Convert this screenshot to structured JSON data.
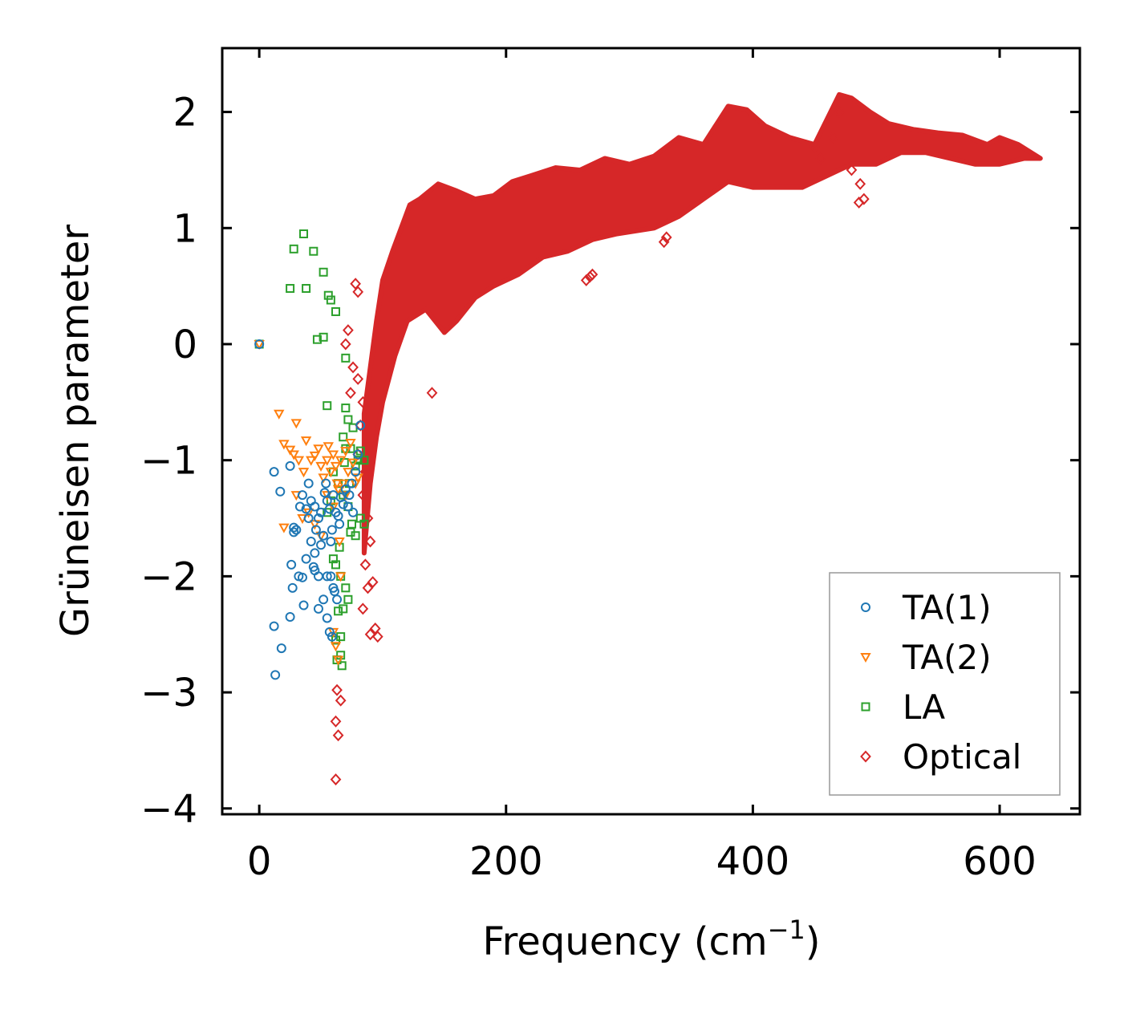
{
  "chart_data": {
    "type": "scatter",
    "title": "",
    "xlabel": "Frequency (cm",
    "xlabel_sup": "−1",
    "xlabel_close": ")",
    "ylabel": "Grüneisen parameter",
    "xlim": [
      -30,
      665
    ],
    "ylim": [
      -4.05,
      2.55
    ],
    "xticks": [
      0,
      200,
      400,
      600
    ],
    "xtick_labels": [
      "0",
      "200",
      "400",
      "600"
    ],
    "yticks": [
      2,
      1,
      0,
      -1,
      -2,
      -3,
      -4
    ],
    "ytick_labels": [
      "2",
      "1",
      "0",
      "−1",
      "−2",
      "−3",
      "−4"
    ],
    "legend_position": "lower-right",
    "series": [
      {
        "name": "TA(1)",
        "marker": "circle",
        "color": "#1f77b4",
        "points": [
          [
            0,
            0
          ],
          [
            13,
            -2.85
          ],
          [
            12,
            -2.43
          ],
          [
            18,
            -2.62
          ],
          [
            25,
            -2.35
          ],
          [
            27,
            -2.1
          ],
          [
            26,
            -1.9
          ],
          [
            32,
            -2.0
          ],
          [
            35,
            -2.01
          ],
          [
            38,
            -1.85
          ],
          [
            45,
            -1.95
          ],
          [
            48,
            -2.28
          ],
          [
            52,
            -2.2
          ],
          [
            55,
            -2.36
          ],
          [
            57,
            -2.48
          ],
          [
            59,
            -2.52
          ],
          [
            60,
            -2.1
          ],
          [
            63,
            -2.2
          ],
          [
            65,
            -1.55
          ],
          [
            58,
            -1.7
          ],
          [
            52,
            -1.65
          ],
          [
            50,
            -1.73
          ],
          [
            45,
            -1.8
          ],
          [
            42,
            -1.7
          ],
          [
            40,
            -1.5
          ],
          [
            38,
            -1.42
          ],
          [
            35,
            -1.3
          ],
          [
            40,
            -1.2
          ],
          [
            45,
            -1.4
          ],
          [
            50,
            -1.45
          ],
          [
            55,
            -1.35
          ],
          [
            60,
            -1.3
          ],
          [
            62,
            -1.45
          ],
          [
            66,
            -1.32
          ],
          [
            70,
            -1.25
          ],
          [
            72,
            -1.4
          ],
          [
            75,
            -1.2
          ],
          [
            78,
            -1.1
          ],
          [
            80,
            -0.95
          ],
          [
            82,
            -0.7
          ],
          [
            12,
            -1.1
          ],
          [
            17,
            -1.27
          ],
          [
            25,
            -1.05
          ],
          [
            28,
            -1.62
          ],
          [
            30,
            -1.6
          ],
          [
            42,
            -1.35
          ],
          [
            48,
            -1.5
          ],
          [
            53,
            -1.28
          ],
          [
            57,
            -1.42
          ],
          [
            64,
            -1.48
          ],
          [
            68,
            -1.38
          ],
          [
            73,
            -1.3
          ],
          [
            76,
            -1.45
          ],
          [
            58,
            -2.0
          ],
          [
            48,
            -2.0
          ],
          [
            36,
            -2.25
          ],
          [
            28,
            -1.58
          ],
          [
            33,
            -1.4
          ],
          [
            46,
            -1.6
          ],
          [
            44,
            -1.92
          ],
          [
            55,
            -2.0
          ],
          [
            61,
            -2.13
          ],
          [
            54,
            -1.2
          ],
          [
            59,
            -1.6
          ]
        ]
      },
      {
        "name": "TA(2)",
        "marker": "triangle",
        "color": "#ff7f0e",
        "points": [
          [
            0,
            0
          ],
          [
            16,
            -0.6
          ],
          [
            30,
            -0.68
          ],
          [
            20,
            -0.86
          ],
          [
            25,
            -0.91
          ],
          [
            28,
            -0.95
          ],
          [
            32,
            -1.0
          ],
          [
            38,
            -0.83
          ],
          [
            45,
            -0.96
          ],
          [
            50,
            -1.05
          ],
          [
            55,
            -1.0
          ],
          [
            58,
            -1.1
          ],
          [
            60,
            -0.95
          ],
          [
            63,
            -1.2
          ],
          [
            66,
            -1.0
          ],
          [
            70,
            -0.92
          ],
          [
            74,
            -0.85
          ],
          [
            78,
            -1.2
          ],
          [
            80,
            -1.15
          ],
          [
            20,
            -1.58
          ],
          [
            30,
            -1.3
          ],
          [
            35,
            -1.5
          ],
          [
            40,
            -1.45
          ],
          [
            45,
            -1.55
          ],
          [
            50,
            -1.65
          ],
          [
            55,
            -1.3
          ],
          [
            60,
            -1.4
          ],
          [
            65,
            -1.7
          ],
          [
            68,
            -1.2
          ],
          [
            72,
            -1.1
          ],
          [
            62,
            -2.6
          ],
          [
            64,
            -2.72
          ],
          [
            66,
            -2.0
          ],
          [
            60,
            -2.48
          ],
          [
            52,
            -1.15
          ],
          [
            48,
            -0.9
          ],
          [
            42,
            -1.0
          ],
          [
            36,
            -1.1
          ],
          [
            56,
            -0.88
          ],
          [
            62,
            -1.05
          ],
          [
            76,
            -1.02
          ],
          [
            70,
            -1.3
          ],
          [
            64,
            -1.25
          ]
        ]
      },
      {
        "name": "LA",
        "marker": "square",
        "color": "#2ca02c",
        "points": [
          [
            0,
            0
          ],
          [
            28,
            0.82
          ],
          [
            36,
            0.95
          ],
          [
            44,
            0.8
          ],
          [
            52,
            0.62
          ],
          [
            25,
            0.48
          ],
          [
            38,
            0.48
          ],
          [
            56,
            0.42
          ],
          [
            58,
            0.38
          ],
          [
            62,
            0.28
          ],
          [
            47,
            0.04
          ],
          [
            52,
            0.06
          ],
          [
            70,
            -0.12
          ],
          [
            55,
            -0.53
          ],
          [
            70,
            -0.55
          ],
          [
            72,
            -0.65
          ],
          [
            68,
            -0.8
          ],
          [
            74,
            -0.9
          ],
          [
            78,
            -1.05
          ],
          [
            82,
            -0.92
          ],
          [
            85,
            -1.0
          ],
          [
            60,
            -1.1
          ],
          [
            64,
            -1.2
          ],
          [
            68,
            -1.3
          ],
          [
            72,
            -1.4
          ],
          [
            75,
            -1.55
          ],
          [
            78,
            -1.65
          ],
          [
            82,
            -1.5
          ],
          [
            85,
            -1.55
          ],
          [
            62,
            -1.9
          ],
          [
            66,
            -2.0
          ],
          [
            70,
            -2.1
          ],
          [
            68,
            -2.28
          ],
          [
            64,
            -2.3
          ],
          [
            62,
            -2.55
          ],
          [
            66,
            -2.68
          ],
          [
            67,
            -2.77
          ],
          [
            63,
            -2.72
          ],
          [
            58,
            -1.35
          ],
          [
            55,
            -1.45
          ],
          [
            74,
            -1.62
          ],
          [
            76,
            -0.72
          ],
          [
            80,
            -1.0
          ],
          [
            70,
            -0.9
          ],
          [
            65,
            -1.75
          ],
          [
            60,
            -1.85
          ],
          [
            72,
            -2.2
          ],
          [
            66,
            -2.52
          ],
          [
            69,
            -1.02
          ],
          [
            73,
            -1.2
          ]
        ]
      },
      {
        "name": "Optical",
        "marker": "diamond",
        "color": "#d62728",
        "points": [
          [
            62,
            -3.75
          ],
          [
            64,
            -3.37
          ],
          [
            62,
            -3.25
          ],
          [
            66,
            -3.07
          ],
          [
            63,
            -2.98
          ],
          [
            78,
            0.52
          ],
          [
            80,
            0.45
          ],
          [
            72,
            0.12
          ],
          [
            70,
            0.0
          ],
          [
            76,
            -0.2
          ],
          [
            80,
            -0.3
          ],
          [
            74,
            -0.42
          ],
          [
            84,
            -0.5
          ],
          [
            82,
            -0.7
          ],
          [
            80,
            -0.95
          ],
          [
            86,
            -1.1
          ],
          [
            84,
            -1.3
          ],
          [
            88,
            -1.5
          ],
          [
            90,
            -1.7
          ],
          [
            86,
            -1.9
          ],
          [
            88,
            -2.1
          ],
          [
            92,
            -2.05
          ],
          [
            84,
            -2.28
          ],
          [
            94,
            -2.45
          ],
          [
            90,
            -2.5
          ],
          [
            96,
            -2.52
          ],
          [
            140,
            -0.42
          ],
          [
            268,
            0.58
          ],
          [
            270,
            0.6
          ],
          [
            265,
            0.55
          ],
          [
            328,
            0.88
          ],
          [
            330,
            0.92
          ],
          [
            490,
            1.25
          ],
          [
            486,
            1.22
          ],
          [
            487,
            1.38
          ],
          [
            480,
            1.5
          ],
          [
            465,
            1.78
          ],
          [
            470,
            2.0
          ],
          [
            450,
            1.7
          ],
          [
            455,
            1.6
          ]
        ],
        "band": {
          "lower": [
            [
              85,
              -1.8
            ],
            [
              90,
              -1.2
            ],
            [
              95,
              -0.8
            ],
            [
              100,
              -0.5
            ],
            [
              110,
              -0.1
            ],
            [
              120,
              0.2
            ],
            [
              135,
              0.3
            ],
            [
              150,
              0.1
            ],
            [
              160,
              0.2
            ],
            [
              175,
              0.4
            ],
            [
              190,
              0.5
            ],
            [
              210,
              0.6
            ],
            [
              230,
              0.75
            ],
            [
              250,
              0.8
            ],
            [
              270,
              0.9
            ],
            [
              290,
              0.95
            ],
            [
              320,
              1.0
            ],
            [
              340,
              1.1
            ],
            [
              360,
              1.25
            ],
            [
              380,
              1.4
            ],
            [
              400,
              1.35
            ],
            [
              420,
              1.35
            ],
            [
              440,
              1.35
            ],
            [
              460,
              1.45
            ],
            [
              480,
              1.55
            ],
            [
              500,
              1.55
            ],
            [
              520,
              1.65
            ],
            [
              540,
              1.65
            ],
            [
              560,
              1.6
            ],
            [
              580,
              1.55
            ],
            [
              600,
              1.55
            ],
            [
              620,
              1.6
            ],
            [
              633,
              1.6
            ]
          ],
          "upper": [
            [
              85,
              -0.6
            ],
            [
              90,
              -0.2
            ],
            [
              95,
              0.2
            ],
            [
              100,
              0.55
            ],
            [
              108,
              0.8
            ],
            [
              115,
              1.0
            ],
            [
              122,
              1.2
            ],
            [
              130,
              1.25
            ],
            [
              145,
              1.38
            ],
            [
              160,
              1.32
            ],
            [
              175,
              1.25
            ],
            [
              190,
              1.28
            ],
            [
              205,
              1.4
            ],
            [
              220,
              1.45
            ],
            [
              240,
              1.52
            ],
            [
              260,
              1.5
            ],
            [
              280,
              1.6
            ],
            [
              300,
              1.55
            ],
            [
              320,
              1.62
            ],
            [
              340,
              1.78
            ],
            [
              360,
              1.72
            ],
            [
              380,
              2.05
            ],
            [
              395,
              2.02
            ],
            [
              410,
              1.88
            ],
            [
              430,
              1.78
            ],
            [
              450,
              1.72
            ],
            [
              470,
              2.15
            ],
            [
              480,
              2.12
            ],
            [
              495,
              2.0
            ],
            [
              510,
              1.9
            ],
            [
              530,
              1.85
            ],
            [
              550,
              1.82
            ],
            [
              570,
              1.8
            ],
            [
              590,
              1.72
            ],
            [
              600,
              1.78
            ],
            [
              615,
              1.72
            ],
            [
              633,
              1.6
            ]
          ]
        }
      }
    ]
  }
}
